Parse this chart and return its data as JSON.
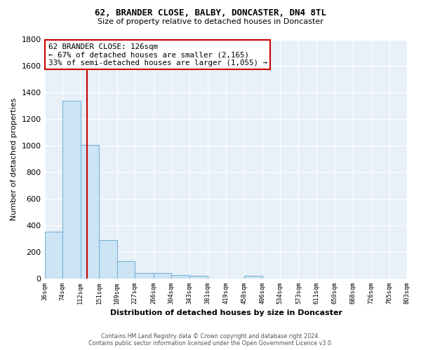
{
  "title1": "62, BRANDER CLOSE, BALBY, DONCASTER, DN4 8TL",
  "title2": "Size of property relative to detached houses in Doncaster",
  "xlabel": "Distribution of detached houses by size in Doncaster",
  "ylabel": "Number of detached properties",
  "footer1": "Contains HM Land Registry data © Crown copyright and database right 2024.",
  "footer2": "Contains public sector information licensed under the Open Government Licence v3.0.",
  "bin_edges": [
    36,
    74,
    112,
    151,
    189,
    227,
    266,
    304,
    343,
    381,
    419,
    458,
    496,
    534,
    573,
    611,
    650,
    688,
    726,
    765,
    803
  ],
  "bar_heights": [
    350,
    1340,
    1005,
    290,
    130,
    40,
    40,
    25,
    20,
    0,
    0,
    20,
    0,
    0,
    0,
    0,
    0,
    0,
    0,
    0
  ],
  "bar_color": "#cde4f5",
  "bar_edge_color": "#7ab4d8",
  "bg_color": "#e8f0f8",
  "property_line_x": 126,
  "property_line_color": "#cc0000",
  "annotation_text": "62 BRANDER CLOSE: 126sqm\n← 67% of detached houses are smaller (2,165)\n33% of semi-detached houses are larger (1,055) →",
  "annotation_box_color": "white",
  "annotation_box_edge": "#cc0000",
  "ylim": [
    0,
    1800
  ],
  "yticks": [
    0,
    200,
    400,
    600,
    800,
    1000,
    1200,
    1400,
    1600,
    1800
  ]
}
